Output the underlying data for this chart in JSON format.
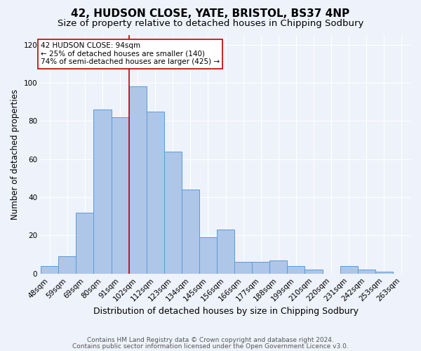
{
  "title": "42, HUDSON CLOSE, YATE, BRISTOL, BS37 4NP",
  "subtitle": "Size of property relative to detached houses in Chipping Sodbury",
  "xlabel": "Distribution of detached houses by size in Chipping Sodbury",
  "ylabel": "Number of detached properties",
  "categories": [
    "48sqm",
    "59sqm",
    "69sqm",
    "80sqm",
    "91sqm",
    "102sqm",
    "112sqm",
    "123sqm",
    "134sqm",
    "145sqm",
    "156sqm",
    "166sqm",
    "177sqm",
    "188sqm",
    "199sqm",
    "210sqm",
    "220sqm",
    "231sqm",
    "242sqm",
    "253sqm",
    "263sqm"
  ],
  "values": [
    4,
    9,
    32,
    86,
    82,
    98,
    85,
    64,
    44,
    19,
    23,
    6,
    6,
    7,
    4,
    2,
    0,
    4,
    2,
    1,
    0
  ],
  "bar_color": "#aec6e8",
  "bar_edge_color": "#5b9bd5",
  "background_color": "#eef2fb",
  "grid_color": "#ffffff",
  "vline_x_idx": 4.5,
  "vline_color": "#c00000",
  "annotation_text": "42 HUDSON CLOSE: 94sqm\n← 25% of detached houses are smaller (140)\n74% of semi-detached houses are larger (425) →",
  "annotation_box_color": "#ffffff",
  "annotation_edge_color": "#c00000",
  "footer_line1": "Contains HM Land Registry data © Crown copyright and database right 2024.",
  "footer_line2": "Contains public sector information licensed under the Open Government Licence v3.0.",
  "ylim": [
    0,
    125
  ],
  "yticks": [
    0,
    20,
    40,
    60,
    80,
    100,
    120
  ],
  "title_fontsize": 11,
  "subtitle_fontsize": 9.5,
  "xlabel_fontsize": 9,
  "ylabel_fontsize": 8.5,
  "tick_fontsize": 7.5,
  "annotation_fontsize": 7.5,
  "footer_fontsize": 6.5
}
